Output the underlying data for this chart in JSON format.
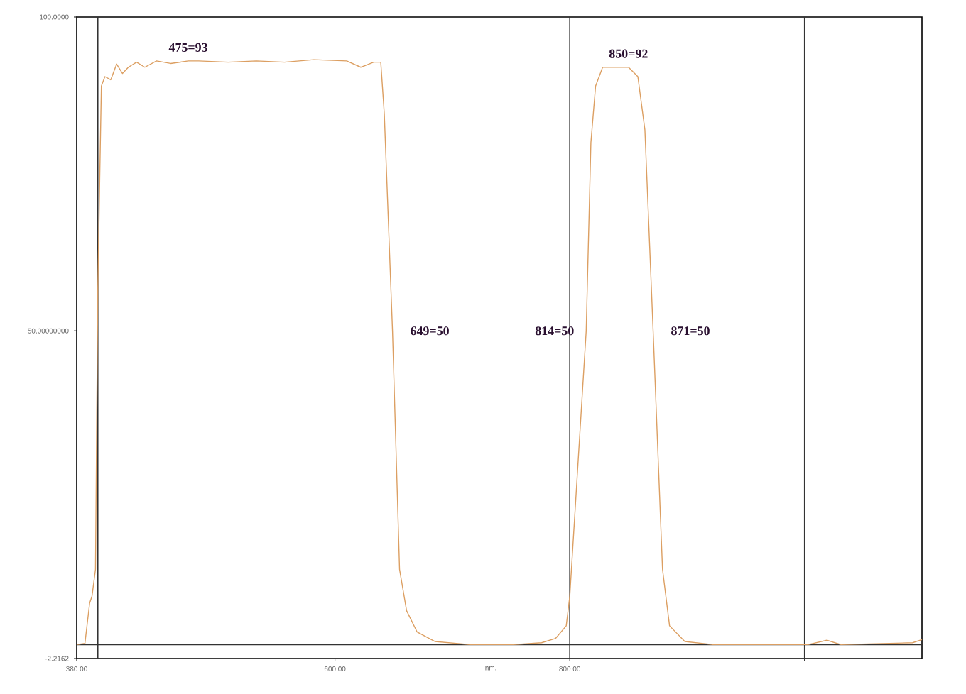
{
  "chart_data": {
    "type": "line",
    "xlabel": "nm.",
    "x": [
      380,
      387,
      391,
      393,
      396,
      398,
      401,
      404,
      409,
      414,
      419,
      424,
      431,
      438,
      448,
      460,
      475,
      484,
      509,
      533,
      557,
      582,
      610,
      622,
      633,
      639,
      642,
      649,
      655,
      661,
      670,
      685,
      715,
      752,
      776,
      788,
      797,
      800,
      814,
      818,
      822,
      828,
      837,
      850,
      858,
      864,
      871,
      879,
      885,
      898,
      922,
      1003,
      1019,
      1031,
      1092,
      1100
    ],
    "series": [
      {
        "color": "#dc9f62",
        "values": [
          0,
          0.2,
          6.6,
          7.7,
          12,
          57,
          89,
          90.5,
          90,
          92.5,
          91,
          92,
          92.8,
          92,
          93,
          92.6,
          93,
          93,
          92.8,
          93,
          92.8,
          93.2,
          93,
          92,
          92.8,
          92.8,
          84.6,
          50,
          12,
          5.4,
          2,
          0.5,
          0,
          0,
          0.3,
          1,
          3,
          7.7,
          50,
          80,
          89,
          92,
          92,
          92,
          90.5,
          82,
          50,
          12,
          3,
          0.5,
          0,
          0,
          0.7,
          0,
          0.3,
          0.8
        ]
      }
    ],
    "xlim": [
      380,
      1100
    ],
    "ylim": [
      -2.2162,
      100
    ],
    "xticks": [
      {
        "value": 380,
        "label": "380.00"
      },
      {
        "value": 600,
        "label": "600.00"
      },
      {
        "value": 800,
        "label": "800.00"
      },
      {
        "value": 1000,
        "label": null
      }
    ],
    "yticks": [
      {
        "value": -2.2162,
        "label": "-2.2162"
      },
      {
        "value": 50,
        "label": "50.00000000"
      },
      {
        "value": 100,
        "label": "100.0000"
      }
    ],
    "ref_lines": [
      {
        "axis": "x",
        "value": 398,
        "color": "#333333"
      },
      {
        "axis": "x",
        "value": 800,
        "color": "#333333"
      },
      {
        "axis": "x",
        "value": 1000,
        "color": "#333333"
      },
      {
        "axis": "y",
        "value": 0,
        "color": "#333333"
      }
    ],
    "annotations": [
      {
        "text": "475=93",
        "x": 475,
        "y": 93
      },
      {
        "text": "649=50",
        "x": 649,
        "y": 50
      },
      {
        "text": "814=50",
        "x": 814,
        "y": 50
      },
      {
        "text": "850=92",
        "x": 850,
        "y": 92
      },
      {
        "text": "871=50",
        "x": 871,
        "y": 50
      }
    ],
    "grid": false,
    "marker": "none",
    "line_style": "solid"
  }
}
